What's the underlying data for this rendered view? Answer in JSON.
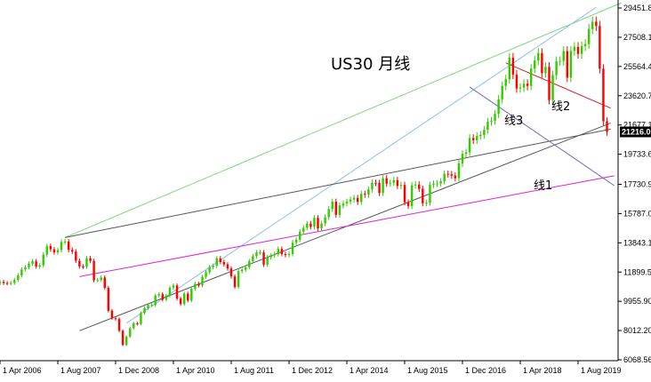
{
  "chart_data": {
    "type": "candlestick",
    "title": "US30 月线",
    "timeframe": "Monthly",
    "y_ticks": [
      "6068.56",
      "8012.20",
      "9955.90",
      "11899.5",
      "13843.1",
      "15787.0",
      "17730.9",
      "19733.6",
      "21677.1",
      "23620.7",
      "25564.4",
      "27508.1",
      "29451.8"
    ],
    "ylim": [
      6068.56,
      29451.8
    ],
    "last_price": "21216.0",
    "x_ticks": [
      "1 Apr 2006",
      "1 Aug 2007",
      "1 Dec 2008",
      "1 Apr 2010",
      "1 Aug 2011",
      "1 Dec 2012",
      "1 Apr 2014",
      "1 Aug 2015",
      "1 Dec 2016",
      "1 Apr 2018",
      "1 Aug 2019"
    ],
    "x_tick_dates": [
      "2006-04",
      "2007-08",
      "2008-12",
      "2010-04",
      "2011-08",
      "2012-12",
      "2014-04",
      "2015-08",
      "2016-12",
      "2018-04",
      "2019-08"
    ],
    "colors": {
      "up": "#33cc00",
      "down": "#ff0000",
      "axis": "#000000",
      "last_tag_bg": "#000000"
    },
    "candles_close": [
      [
        "2006-04",
        11250
      ],
      [
        "2006-05",
        11170
      ],
      [
        "2006-06",
        11150
      ],
      [
        "2006-07",
        11180
      ],
      [
        "2006-08",
        11380
      ],
      [
        "2006-09",
        11680
      ],
      [
        "2006-10",
        12080
      ],
      [
        "2006-11",
        12220
      ],
      [
        "2006-12",
        12460
      ],
      [
        "2007-01",
        12620
      ],
      [
        "2007-02",
        12270
      ],
      [
        "2007-03",
        12350
      ],
      [
        "2007-04",
        13060
      ],
      [
        "2007-05",
        13630
      ],
      [
        "2007-06",
        13410
      ],
      [
        "2007-07",
        13210
      ],
      [
        "2007-08",
        13360
      ],
      [
        "2007-09",
        13900
      ],
      [
        "2007-10",
        13930
      ],
      [
        "2007-11",
        13370
      ],
      [
        "2007-12",
        13260
      ],
      [
        "2008-01",
        12650
      ],
      [
        "2008-02",
        12270
      ],
      [
        "2008-03",
        12260
      ],
      [
        "2008-04",
        12820
      ],
      [
        "2008-05",
        12640
      ],
      [
        "2008-06",
        11350
      ],
      [
        "2008-07",
        11380
      ],
      [
        "2008-08",
        11540
      ],
      [
        "2008-09",
        10850
      ],
      [
        "2008-10",
        9330
      ],
      [
        "2008-11",
        8830
      ],
      [
        "2008-12",
        8780
      ],
      [
        "2009-01",
        8000
      ],
      [
        "2009-02",
        7060
      ],
      [
        "2009-03",
        7610
      ],
      [
        "2009-04",
        8170
      ],
      [
        "2009-05",
        8500
      ],
      [
        "2009-06",
        8450
      ],
      [
        "2009-07",
        9170
      ],
      [
        "2009-08",
        9500
      ],
      [
        "2009-09",
        9710
      ],
      [
        "2009-10",
        9710
      ],
      [
        "2009-11",
        10340
      ],
      [
        "2009-12",
        10430
      ],
      [
        "2010-01",
        10070
      ],
      [
        "2010-02",
        10330
      ],
      [
        "2010-03",
        10860
      ],
      [
        "2010-04",
        11010
      ],
      [
        "2010-05",
        10140
      ],
      [
        "2010-06",
        9770
      ],
      [
        "2010-07",
        10470
      ],
      [
        "2010-08",
        10010
      ],
      [
        "2010-09",
        10790
      ],
      [
        "2010-10",
        11120
      ],
      [
        "2010-11",
        11010
      ],
      [
        "2010-12",
        11580
      ],
      [
        "2011-01",
        11890
      ],
      [
        "2011-02",
        12230
      ],
      [
        "2011-03",
        12320
      ],
      [
        "2011-04",
        12810
      ],
      [
        "2011-05",
        12570
      ],
      [
        "2011-06",
        12410
      ],
      [
        "2011-07",
        12140
      ],
      [
        "2011-08",
        11610
      ],
      [
        "2011-09",
        10910
      ],
      [
        "2011-10",
        11960
      ],
      [
        "2011-11",
        12050
      ],
      [
        "2011-12",
        12220
      ],
      [
        "2012-01",
        12630
      ],
      [
        "2012-02",
        12950
      ],
      [
        "2012-03",
        13210
      ],
      [
        "2012-04",
        13210
      ],
      [
        "2012-05",
        12390
      ],
      [
        "2012-06",
        12880
      ],
      [
        "2012-07",
        13010
      ],
      [
        "2012-08",
        13090
      ],
      [
        "2012-09",
        13440
      ],
      [
        "2012-10",
        13100
      ],
      [
        "2012-11",
        13030
      ],
      [
        "2012-12",
        13100
      ],
      [
        "2013-01",
        13860
      ],
      [
        "2013-02",
        14050
      ],
      [
        "2013-03",
        14580
      ],
      [
        "2013-04",
        14840
      ],
      [
        "2013-05",
        15120
      ],
      [
        "2013-06",
        14910
      ],
      [
        "2013-07",
        15500
      ],
      [
        "2013-08",
        14810
      ],
      [
        "2013-09",
        15130
      ],
      [
        "2013-10",
        15550
      ],
      [
        "2013-11",
        16090
      ],
      [
        "2013-12",
        16580
      ],
      [
        "2014-01",
        15700
      ],
      [
        "2014-02",
        16320
      ],
      [
        "2014-03",
        16460
      ],
      [
        "2014-04",
        16580
      ],
      [
        "2014-05",
        16720
      ],
      [
        "2014-06",
        16830
      ],
      [
        "2014-07",
        16560
      ],
      [
        "2014-08",
        17100
      ],
      [
        "2014-09",
        17040
      ],
      [
        "2014-10",
        17390
      ],
      [
        "2014-11",
        17830
      ],
      [
        "2014-12",
        17820
      ],
      [
        "2015-01",
        17160
      ],
      [
        "2015-02",
        18130
      ],
      [
        "2015-03",
        17780
      ],
      [
        "2015-04",
        17840
      ],
      [
        "2015-05",
        18010
      ],
      [
        "2015-06",
        17620
      ],
      [
        "2015-07",
        17690
      ],
      [
        "2015-08",
        16530
      ],
      [
        "2015-09",
        16280
      ],
      [
        "2015-10",
        17660
      ],
      [
        "2015-11",
        17720
      ],
      [
        "2015-12",
        17430
      ],
      [
        "2016-01",
        16470
      ],
      [
        "2016-02",
        16520
      ],
      [
        "2016-03",
        17690
      ],
      [
        "2016-04",
        17770
      ],
      [
        "2016-05",
        17790
      ],
      [
        "2016-06",
        17930
      ],
      [
        "2016-07",
        18430
      ],
      [
        "2016-08",
        18400
      ],
      [
        "2016-09",
        18310
      ],
      [
        "2016-10",
        18140
      ],
      [
        "2016-11",
        19120
      ],
      [
        "2016-12",
        19760
      ],
      [
        "2017-01",
        19860
      ],
      [
        "2017-02",
        20810
      ],
      [
        "2017-03",
        20660
      ],
      [
        "2017-04",
        20940
      ],
      [
        "2017-05",
        21010
      ],
      [
        "2017-06",
        21350
      ],
      [
        "2017-07",
        21890
      ],
      [
        "2017-08",
        21950
      ],
      [
        "2017-09",
        22410
      ],
      [
        "2017-10",
        23380
      ],
      [
        "2017-11",
        24270
      ],
      [
        "2017-12",
        24720
      ],
      [
        "2018-01",
        26150
      ],
      [
        "2018-02",
        25030
      ],
      [
        "2018-03",
        24100
      ],
      [
        "2018-04",
        24160
      ],
      [
        "2018-05",
        24420
      ],
      [
        "2018-06",
        24270
      ],
      [
        "2018-07",
        25420
      ],
      [
        "2018-08",
        25960
      ],
      [
        "2018-09",
        26460
      ],
      [
        "2018-10",
        25120
      ],
      [
        "2018-11",
        25540
      ],
      [
        "2018-12",
        23330
      ],
      [
        "2019-01",
        24990
      ],
      [
        "2019-02",
        25920
      ],
      [
        "2019-03",
        25930
      ],
      [
        "2019-04",
        26590
      ],
      [
        "2019-05",
        24820
      ],
      [
        "2019-06",
        26600
      ],
      [
        "2019-07",
        26860
      ],
      [
        "2019-08",
        26400
      ],
      [
        "2019-09",
        26920
      ],
      [
        "2019-10",
        27050
      ],
      [
        "2019-11",
        28050
      ],
      [
        "2019-12",
        28540
      ],
      [
        "2020-01",
        28260
      ],
      [
        "2020-02",
        25410
      ],
      [
        "2020-03",
        21920
      ],
      [
        "2020-04",
        21216
      ]
    ],
    "trendlines_label": [
      "线1",
      "线2",
      "线3"
    ]
  }
}
